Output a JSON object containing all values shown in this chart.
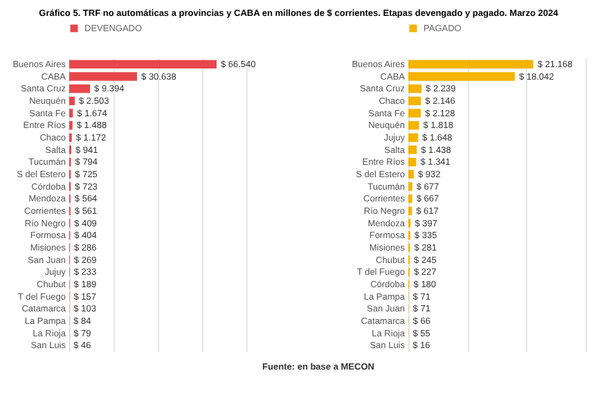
{
  "chart_data": [
    {
      "type": "bar",
      "orientation": "horizontal",
      "title": "Gráfico 5. TRF no automáticas a provincias y CABA en millones de $ corrientes. Etapas devengado y pagado. Marzo 2024",
      "categories": [
        "Buenos Aires",
        "CABA",
        "Santa Cruz",
        "Neuquén",
        "Santa Fe",
        "Entre Ríos",
        "Chaco",
        "Salta",
        "Tucumán",
        "S del Estero",
        "Córdoba",
        "Mendoza",
        "Corrientes",
        "Río Negro",
        "Formosa",
        "Misiones",
        "San Juan",
        "Jujuy",
        "Chubut",
        "T del Fuego",
        "Catamarca",
        "La Pampa",
        "La Rioja",
        "San Luis"
      ],
      "series": [
        {
          "name": "DEVENGADO",
          "color": "#e8474c",
          "values": [
            66540,
            30638,
            9394,
            2503,
            1674,
            1488,
            1172,
            941,
            794,
            725,
            723,
            564,
            561,
            409,
            404,
            286,
            269,
            233,
            189,
            157,
            103,
            84,
            79,
            46
          ],
          "value_labels": [
            "$ 66.540",
            "$ 30.638",
            "$ 9.394",
            "$ 2.503",
            "$ 1.674",
            "$ 1.488",
            "$ 1.172",
            "$ 941",
            "$ 794",
            "$ 725",
            "$ 723",
            "$ 564",
            "$ 561",
            "$ 409",
            "$ 404",
            "$ 286",
            "$ 269",
            "$ 233",
            "$ 189",
            "$ 157",
            "$ 103",
            "$ 84",
            "$ 79",
            "$ 46"
          ]
        }
      ],
      "xlim": [
        0,
        80000
      ],
      "xticks": [
        {
          "value": 0,
          "label": null
        },
        {
          "value": 20000,
          "label": null
        },
        {
          "value": 40000,
          "label": null
        },
        {
          "value": 60000,
          "label": null
        },
        {
          "value": 80000,
          "label": null
        }
      ],
      "tick_labels": "y",
      "grid": "x",
      "legend": "top"
    },
    {
      "type": "bar",
      "orientation": "horizontal",
      "categories": [
        "Buenos Aires",
        "CABA",
        "Santa Cruz",
        "Chaco",
        "Santa Fe",
        "Neuquén",
        "Jujuy",
        "Salta",
        "Entre Ríos",
        "S del Estero",
        "Tucumán",
        "Corrientes",
        "Río Negro",
        "Mendoza",
        "Formosa",
        "Misiones",
        "Chubut",
        "T del Fuego",
        "Córdoba",
        "La Pampa",
        "San Juan",
        "Catamarca",
        "La Rioja",
        "San Luis"
      ],
      "series": [
        {
          "name": "PAGADO",
          "color": "#f4b400",
          "values": [
            21168,
            18042,
            2239,
            2146,
            2128,
            1818,
            1648,
            1438,
            1341,
            932,
            677,
            667,
            617,
            397,
            335,
            281,
            245,
            227,
            180,
            71,
            71,
            66,
            55,
            16
          ],
          "value_labels": [
            "$ 21.168",
            "$ 18.042",
            "$ 2.239",
            "$ 2.146",
            "$ 2.128",
            "$ 1.818",
            "$ 1.648",
            "$ 1.438",
            "$ 1.341",
            "$ 932",
            "$ 677",
            "$ 667",
            "$ 617",
            "$ 397",
            "$ 335",
            "$ 281",
            "$ 245",
            "$ 227",
            "$ 180",
            "$ 71",
            "$ 71",
            "$ 66",
            "$ 55",
            "$ 16"
          ]
        }
      ],
      "xlim": [
        0,
        30000
      ],
      "xticks": [
        {
          "value": 0,
          "label": null
        },
        {
          "value": 10000,
          "label": null
        },
        {
          "value": 20000,
          "label": null
        },
        {
          "value": 30000,
          "label": null
        }
      ],
      "tick_labels": "y",
      "grid": "x",
      "legend": "top",
      "annotations": [
        "Fuente: en base a MECON"
      ]
    }
  ]
}
